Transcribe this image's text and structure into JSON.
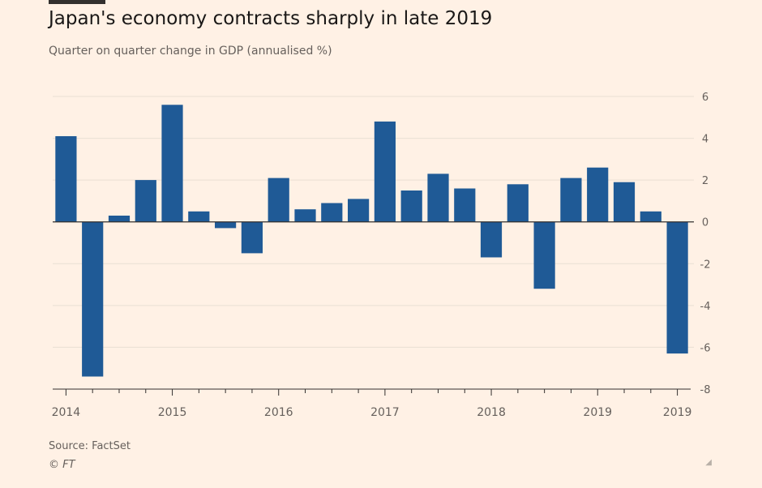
{
  "header": {
    "title": "Japan's economy contracts sharply in late 2019",
    "subtitle": "Quarter on quarter change in GDP (annualised %)"
  },
  "footer": {
    "source": "Source: FactSet",
    "copyright": "© FT"
  },
  "colors": {
    "background": "#fff1e5",
    "bar": "#1f5a96",
    "grid": "#e9dfd3",
    "axis": "#33302e",
    "tick_text": "#66605c"
  },
  "chart_data": {
    "type": "bar",
    "categories": [
      "2014 Q1",
      "2014 Q2",
      "2014 Q3",
      "2014 Q4",
      "2015 Q1",
      "2015 Q2",
      "2015 Q3",
      "2015 Q4",
      "2016 Q1",
      "2016 Q2",
      "2016 Q3",
      "2016 Q4",
      "2017 Q1",
      "2017 Q2",
      "2017 Q3",
      "2017 Q4",
      "2018 Q1",
      "2018 Q2",
      "2018 Q3",
      "2018 Q4",
      "2019 Q1",
      "2019 Q2",
      "2019 Q3",
      "2019 Q4"
    ],
    "values": [
      4.1,
      -7.4,
      0.3,
      2.0,
      5.6,
      0.5,
      -0.3,
      -1.5,
      2.1,
      0.6,
      0.9,
      1.1,
      4.8,
      1.5,
      2.3,
      1.6,
      -1.7,
      1.8,
      -3.2,
      2.1,
      2.6,
      1.9,
      0.5,
      -6.3
    ],
    "x_tick_labels": [
      {
        "label": "2014",
        "index": 0
      },
      {
        "label": "2015",
        "index": 4
      },
      {
        "label": "2016",
        "index": 8
      },
      {
        "label": "2017",
        "index": 12
      },
      {
        "label": "2018",
        "index": 16
      },
      {
        "label": "2019",
        "index": 20
      },
      {
        "label": "2019",
        "index": 23
      }
    ],
    "y_ticks": [
      6,
      4,
      2,
      0,
      -2,
      -4,
      -6,
      -8
    ],
    "ylim": [
      -8,
      6
    ],
    "y_axis_side": "right",
    "grid": true,
    "title": "Japan's economy contracts sharply in late 2019",
    "xlabel": "",
    "ylabel": "Quarter on quarter change in GDP (annualised %)"
  }
}
